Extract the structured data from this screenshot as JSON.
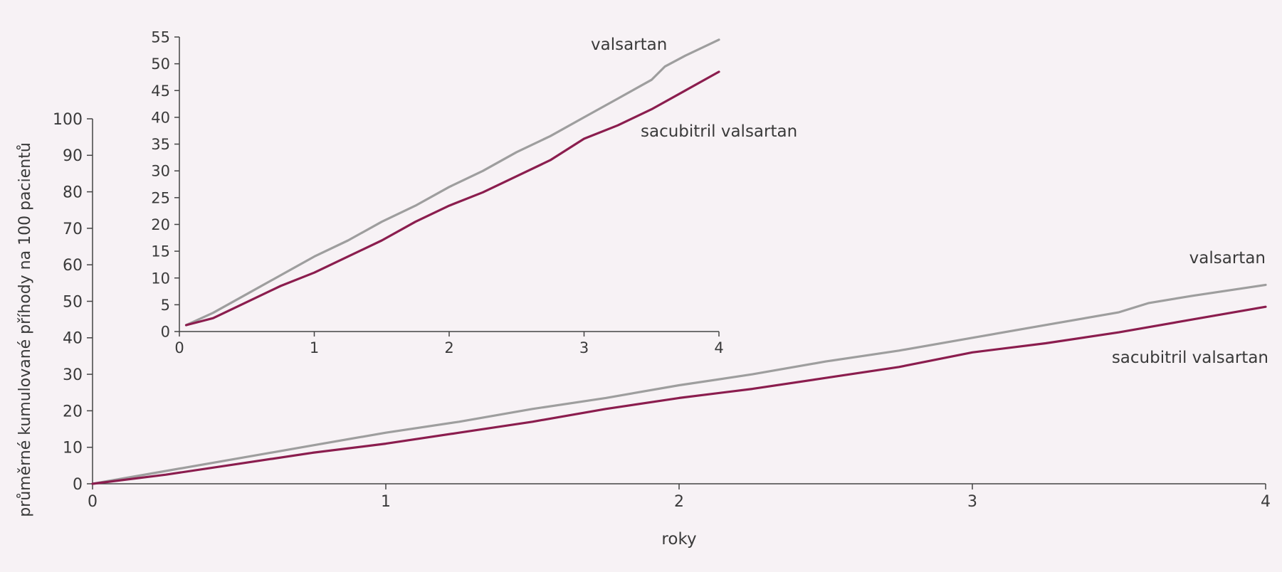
{
  "colors": {
    "background": "#f7f2f5",
    "axis": "#444444",
    "valsartan": "#9e9e9e",
    "sacubitril_valsartan": "#8b1d4e"
  },
  "chart_data": [
    {
      "id": "main",
      "type": "line",
      "title": "",
      "xlabel": "roky",
      "ylabel": "průměrné kumulované příhody na 100 pacientů",
      "xlim": [
        0,
        4
      ],
      "ylim": [
        0,
        100
      ],
      "x_ticks": [
        0,
        1,
        2,
        3,
        4
      ],
      "y_ticks": [
        0,
        10,
        20,
        30,
        40,
        50,
        60,
        70,
        80,
        90,
        100
      ],
      "grid": false,
      "legend": "none",
      "series": [
        {
          "name": "valsartan",
          "color_key": "valsartan",
          "x": [
            0,
            0.25,
            0.5,
            0.75,
            1.0,
            1.25,
            1.5,
            1.75,
            2.0,
            2.25,
            2.5,
            2.75,
            3.0,
            3.25,
            3.5,
            3.6,
            3.75,
            4.0
          ],
          "y": [
            0,
            3.5,
            7,
            10.5,
            14,
            17,
            20.5,
            23.5,
            27,
            30,
            33.5,
            36.5,
            40,
            43.5,
            47,
            49.5,
            51.5,
            54.5
          ]
        },
        {
          "name": "sacubitril valsartan",
          "color_key": "sacubitril_valsartan",
          "x": [
            0,
            0.25,
            0.5,
            0.75,
            1.0,
            1.25,
            1.5,
            1.75,
            2.0,
            2.25,
            2.5,
            2.75,
            3.0,
            3.25,
            3.5,
            3.75,
            4.0
          ],
          "y": [
            0,
            2.5,
            5.5,
            8.5,
            11,
            14,
            17,
            20.5,
            23.5,
            26,
            29,
            32,
            36,
            38.5,
            41.5,
            45,
            48.5
          ]
        }
      ],
      "annotations": [
        {
          "text": "valsartan",
          "anchor_series": "valsartan",
          "position": "above line end"
        },
        {
          "text": "sacubitril valsartan",
          "anchor_series": "sacubitril valsartan",
          "position": "below line end"
        }
      ]
    },
    {
      "id": "inset",
      "type": "line",
      "title": "",
      "xlabel": "",
      "ylabel": "",
      "xlim": [
        0,
        4
      ],
      "ylim": [
        0,
        55
      ],
      "x_ticks": [
        0,
        1,
        2,
        3,
        4
      ],
      "y_ticks": [
        0,
        5,
        10,
        15,
        20,
        25,
        30,
        35,
        40,
        45,
        50,
        55
      ],
      "grid": false,
      "legend": "none",
      "series": [
        {
          "name": "valsartan",
          "color_key": "valsartan",
          "x": [
            0.05,
            0.25,
            0.5,
            0.75,
            1.0,
            1.25,
            1.5,
            1.75,
            2.0,
            2.25,
            2.5,
            2.75,
            3.0,
            3.25,
            3.5,
            3.6,
            3.75,
            4.0
          ],
          "y": [
            1.2,
            3.5,
            7,
            10.5,
            14,
            17,
            20.5,
            23.5,
            27,
            30,
            33.5,
            36.5,
            40,
            43.5,
            47,
            49.5,
            51.5,
            54.5
          ]
        },
        {
          "name": "sacubitril valsartan",
          "color_key": "sacubitril_valsartan",
          "x": [
            0.05,
            0.25,
            0.5,
            0.75,
            1.0,
            1.25,
            1.5,
            1.75,
            2.0,
            2.25,
            2.5,
            2.75,
            3.0,
            3.25,
            3.5,
            3.75,
            4.0
          ],
          "y": [
            1.2,
            2.5,
            5.5,
            8.5,
            11,
            14,
            17,
            20.5,
            23.5,
            26,
            29,
            32,
            36,
            38.5,
            41.5,
            45,
            48.5
          ]
        }
      ],
      "annotations": [
        {
          "text": "valsartan",
          "anchor_series": "valsartan",
          "position": "left of line end"
        },
        {
          "text": "sacubitril valsartan",
          "anchor_series": "sacubitril valsartan",
          "position": "below line end"
        }
      ]
    }
  ]
}
